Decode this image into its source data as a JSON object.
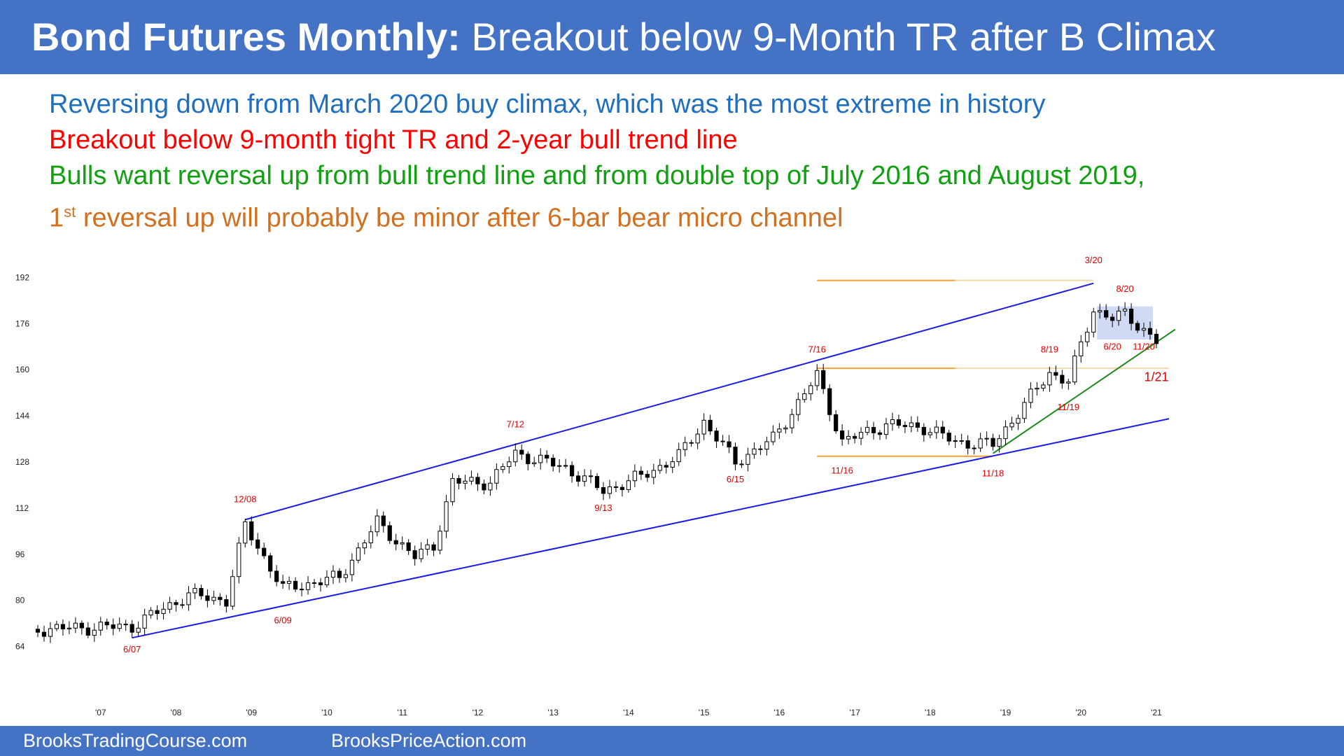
{
  "title": {
    "bold": "Bond Futures Monthly:",
    "rest": " Breakout below 9-Month TR after B Climax"
  },
  "notes": [
    {
      "text": "Reversing down from March 2020 buy climax, which was the most extreme in history",
      "color": "#1F6FC0"
    },
    {
      "text": "Breakout below 9-month tight TR and 2-year bull trend line",
      "color": "#FF0000"
    },
    {
      "text": "Bulls want reversal up from bull trend line and from double top of July 2016 and August 2019,",
      "color": "#11A011"
    },
    {
      "prefix": "1",
      "sup": "st",
      "text": " reversal up will probably be minor after 6-bar bear micro channel",
      "color": "#D07020"
    }
  ],
  "footer": {
    "left": "BrooksTradingCourse.com",
    "right": "BrooksPriceAction.com"
  },
  "chart_data": {
    "type": "candlestick",
    "title": "",
    "xlabel": "",
    "ylabel": "",
    "x_ticks": [
      "'07",
      "'08",
      "'09",
      "'10",
      "'11",
      "'12",
      "'13",
      "'14",
      "'15",
      "'16",
      "'17",
      "'18",
      "'19",
      "'20",
      "'21"
    ],
    "y_ticks": [
      64,
      80,
      96,
      112,
      128,
      144,
      160,
      176,
      192
    ],
    "ylim": [
      60,
      196
    ],
    "x_start": "2006-03",
    "x_end": "2021-01",
    "anchors": [
      {
        "date": "2006-03",
        "close": 70
      },
      {
        "date": "2007-06",
        "close": 71
      },
      {
        "date": "2008-03",
        "close": 82
      },
      {
        "date": "2008-09",
        "close": 80
      },
      {
        "date": "2008-12",
        "close": 106
      },
      {
        "date": "2009-06",
        "close": 84
      },
      {
        "date": "2010-03",
        "close": 88
      },
      {
        "date": "2010-09",
        "close": 107
      },
      {
        "date": "2011-03",
        "close": 95
      },
      {
        "date": "2011-06",
        "close": 99
      },
      {
        "date": "2011-09",
        "close": 121
      },
      {
        "date": "2012-03",
        "close": 121
      },
      {
        "date": "2012-07",
        "close": 131
      },
      {
        "date": "2013-03",
        "close": 126
      },
      {
        "date": "2013-09",
        "close": 118
      },
      {
        "date": "2014-03",
        "close": 123
      },
      {
        "date": "2014-09",
        "close": 130
      },
      {
        "date": "2015-01",
        "close": 142
      },
      {
        "date": "2015-06",
        "close": 128
      },
      {
        "date": "2015-12",
        "close": 136
      },
      {
        "date": "2016-07",
        "close": 158
      },
      {
        "date": "2016-11",
        "close": 135
      },
      {
        "date": "2017-06",
        "close": 141
      },
      {
        "date": "2017-12",
        "close": 140
      },
      {
        "date": "2018-05",
        "close": 135
      },
      {
        "date": "2018-11",
        "close": 134
      },
      {
        "date": "2019-08",
        "close": 159
      },
      {
        "date": "2019-11",
        "close": 156
      },
      {
        "date": "2020-03",
        "close": 181
      },
      {
        "date": "2020-06",
        "close": 178
      },
      {
        "date": "2020-08",
        "close": 179
      },
      {
        "date": "2020-11",
        "close": 174
      },
      {
        "date": "2021-01",
        "close": 170
      }
    ],
    "trend_lines": [
      {
        "name": "upper channel line",
        "from": {
          "date": "2008-12",
          "price": 108
        },
        "to": {
          "date": "2020-03",
          "price": 190
        },
        "color": "#1A1AE6"
      },
      {
        "name": "lower channel line",
        "from": {
          "date": "2007-06",
          "price": 67
        },
        "to": {
          "date": "2021-03",
          "price": 143
        },
        "color": "#1A1AE6"
      },
      {
        "name": "bull trend line",
        "from": {
          "date": "2018-11",
          "price": 131
        },
        "to": {
          "date": "2021-04",
          "price": 174
        },
        "color": "#1A8A1A"
      }
    ],
    "horizontal_lines": [
      {
        "price": 191,
        "from": "2016-07",
        "to": "2018-05",
        "color": "#F0A030"
      },
      {
        "price": 191,
        "from": "2018-05",
        "to": "2020-03",
        "color": "#F3D9A8"
      },
      {
        "price": 160.5,
        "from": "2016-07",
        "to": "2018-05",
        "color": "#F0A030"
      },
      {
        "price": 160.5,
        "from": "2018-05",
        "to": "2021-03",
        "color": "#F3D9A8"
      },
      {
        "price": 130,
        "from": "2016-07",
        "to": "2018-11",
        "color": "#F0A030"
      }
    ],
    "range_box": {
      "from": "2020-04",
      "to": "2020-12",
      "low": 170.5,
      "high": 182,
      "color": "#C9D3F3"
    },
    "annotations": [
      {
        "text": "6/07",
        "date": "2007-06",
        "price": 62,
        "color": "#E00000"
      },
      {
        "text": "12/08",
        "date": "2008-12",
        "price": 114,
        "color": "#E00000"
      },
      {
        "text": "6/09",
        "date": "2009-06",
        "price": 72,
        "color": "#E00000"
      },
      {
        "text": "7/12",
        "date": "2012-07",
        "price": 140,
        "color": "#E00000"
      },
      {
        "text": "9/13",
        "date": "2013-09",
        "price": 111,
        "color": "#E00000"
      },
      {
        "text": "6/15",
        "date": "2015-06",
        "price": 121,
        "color": "#E00000"
      },
      {
        "text": "7/16",
        "date": "2016-07",
        "price": 166,
        "color": "#E00000"
      },
      {
        "text": "11/16",
        "date": "2016-11",
        "price": 124,
        "color": "#E00000"
      },
      {
        "text": "11/18",
        "date": "2018-11",
        "price": 123,
        "color": "#E00000"
      },
      {
        "text": "8/19",
        "date": "2019-08",
        "price": 166,
        "color": "#E00000"
      },
      {
        "text": "11/19",
        "date": "2019-11",
        "price": 146,
        "color": "#E00000"
      },
      {
        "text": "3/20",
        "date": "2020-03",
        "price": 197,
        "color": "#E00000"
      },
      {
        "text": "8/20",
        "date": "2020-08",
        "price": 187,
        "color": "#E00000"
      },
      {
        "text": "6/20",
        "date": "2020-06",
        "price": 167,
        "color": "#E00000"
      },
      {
        "text": "11/20",
        "date": "2020-11",
        "price": 167,
        "color": "#E00000"
      },
      {
        "text": "1/21",
        "date": "2021-01",
        "price": 156,
        "color": "#E00000"
      }
    ]
  }
}
